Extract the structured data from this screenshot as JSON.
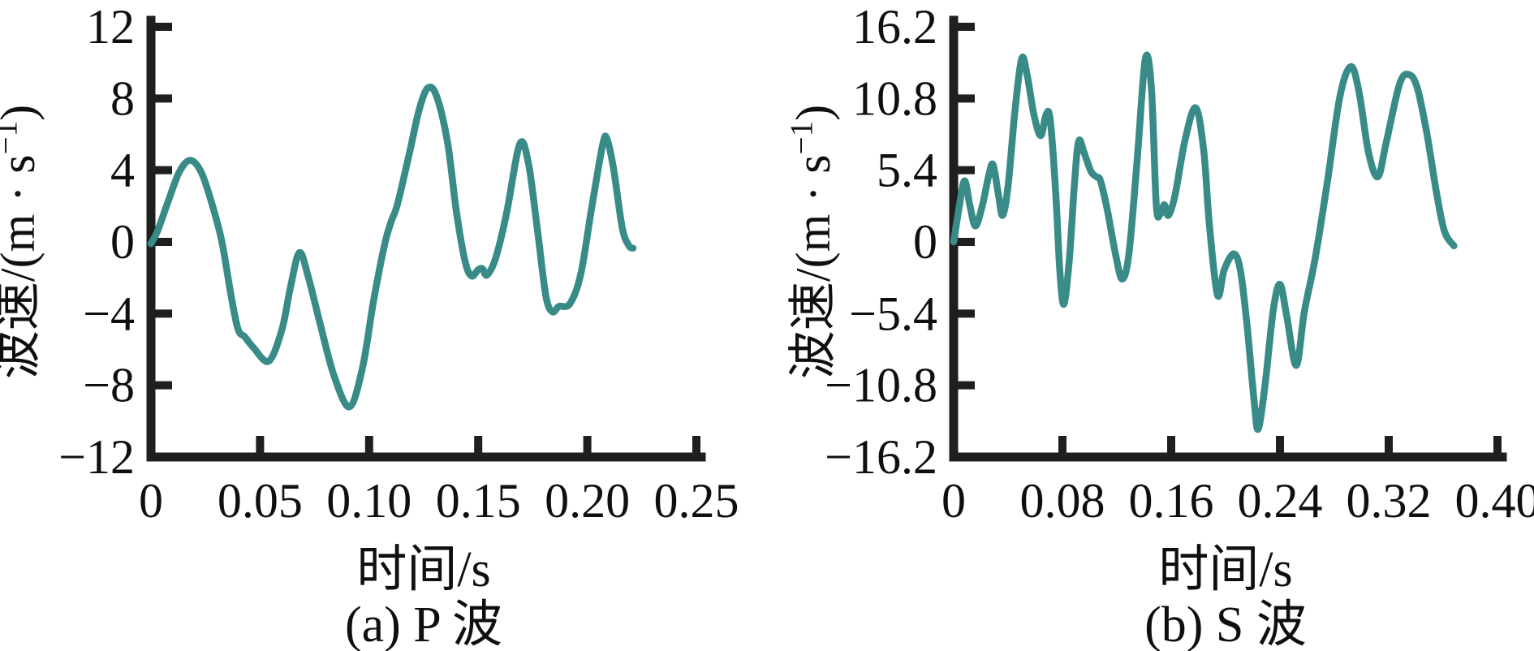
{
  "figure": {
    "background": "#ffffff",
    "line_color": "#388b87",
    "axis_color": "#1f1f1f",
    "text_color": "#0f0f0f"
  },
  "chart_data": [
    {
      "type": "line",
      "id": "p-wave",
      "caption": "(a) P 波",
      "xlabel": "时间/s",
      "ylabel": "波速/(m · s⁻¹)",
      "ylabel_parts": {
        "prefix": "波速/(m · s",
        "superscript": "−1",
        "suffix": ")"
      },
      "xlim": [
        0,
        0.25
      ],
      "ylim": [
        -12,
        12
      ],
      "xticks": [
        "0",
        "0.05",
        "0.10",
        "0.15",
        "0.20",
        "0.25"
      ],
      "xtick_values": [
        0,
        0.05,
        0.1,
        0.15,
        0.2,
        0.25
      ],
      "yticks": [
        "−12",
        "−8",
        "−4",
        "0",
        "4",
        "8",
        "12"
      ],
      "ytick_values": [
        -12,
        -8,
        -4,
        0,
        4,
        8,
        12
      ],
      "grid": false,
      "legend": null,
      "points": [
        [
          0,
          -0.1
        ],
        [
          0.003,
          0.6
        ],
        [
          0.008,
          2.3
        ],
        [
          0.013,
          3.9
        ],
        [
          0.018,
          4.55
        ],
        [
          0.023,
          3.9
        ],
        [
          0.028,
          2.1
        ],
        [
          0.0325,
          0
        ],
        [
          0.037,
          -3.2
        ],
        [
          0.04,
          -4.9
        ],
        [
          0.043,
          -5.3
        ],
        [
          0.047,
          -5.9
        ],
        [
          0.054,
          -6.65
        ],
        [
          0.06,
          -4.9
        ],
        [
          0.064,
          -2.5
        ],
        [
          0.068,
          -0.6
        ],
        [
          0.072,
          -1.9
        ],
        [
          0.078,
          -4.8
        ],
        [
          0.084,
          -7.5
        ],
        [
          0.091,
          -9.2
        ],
        [
          0.097,
          -7.0
        ],
        [
          0.102,
          -3.3
        ],
        [
          0.107,
          -0.2
        ],
        [
          0.11,
          1.1
        ],
        [
          0.113,
          2.1
        ],
        [
          0.118,
          4.7
        ],
        [
          0.123,
          7.4
        ],
        [
          0.127,
          8.6
        ],
        [
          0.131,
          8.1
        ],
        [
          0.136,
          5.5
        ],
        [
          0.14,
          1.7
        ],
        [
          0.144,
          -1.1
        ],
        [
          0.147,
          -1.9
        ],
        [
          0.15,
          -1.55
        ],
        [
          0.152,
          -1.5
        ],
        [
          0.154,
          -1.85
        ],
        [
          0.158,
          -0.9
        ],
        [
          0.163,
          1.6
        ],
        [
          0.169,
          5.45
        ],
        [
          0.173,
          4.4
        ],
        [
          0.177,
          0.8
        ],
        [
          0.181,
          -3.0
        ],
        [
          0.184,
          -3.9
        ],
        [
          0.187,
          -3.6
        ],
        [
          0.192,
          -3.45
        ],
        [
          0.197,
          -1.8
        ],
        [
          0.202,
          1.9
        ],
        [
          0.207,
          5.4
        ],
        [
          0.209,
          5.75
        ],
        [
          0.212,
          4.1
        ],
        [
          0.216,
          0.8
        ],
        [
          0.219,
          -0.2
        ],
        [
          0.221,
          -0.35
        ]
      ]
    },
    {
      "type": "line",
      "id": "s-wave",
      "caption": "(b) S 波",
      "xlabel": "时间/s",
      "ylabel": "波速/(m · s⁻¹)",
      "ylabel_parts": {
        "prefix": "波速/(m · s",
        "superscript": "−1",
        "suffix": ")"
      },
      "xlim": [
        0,
        0.4
      ],
      "ylim": [
        -16.2,
        16.2
      ],
      "xticks": [
        "0",
        "0.08",
        "0.16",
        "0.24",
        "0.32",
        "0.40"
      ],
      "xtick_values": [
        0,
        0.08,
        0.16,
        0.24,
        0.32,
        0.4
      ],
      "yticks": [
        "−16.2",
        "−10.8",
        "−5.4",
        "0",
        "5.4",
        "10.8",
        "16.2"
      ],
      "ytick_values": [
        -16.2,
        -10.8,
        -5.4,
        0,
        5.4,
        10.8,
        16.2
      ],
      "grid": false,
      "legend": null,
      "points": [
        [
          0,
          0
        ],
        [
          0.004,
          2.6
        ],
        [
          0.008,
          4.6
        ],
        [
          0.012,
          2.7
        ],
        [
          0.016,
          1.2
        ],
        [
          0.021,
          2.7
        ],
        [
          0.026,
          5.1
        ],
        [
          0.029,
          5.8
        ],
        [
          0.033,
          3.5
        ],
        [
          0.036,
          2.0
        ],
        [
          0.04,
          4.2
        ],
        [
          0.045,
          9.8
        ],
        [
          0.05,
          13.8
        ],
        [
          0.054,
          12.6
        ],
        [
          0.059,
          9.6
        ],
        [
          0.064,
          8.0
        ],
        [
          0.068,
          9.6
        ],
        [
          0.071,
          9.2
        ],
        [
          0.075,
          3.8
        ],
        [
          0.078,
          -2.0
        ],
        [
          0.081,
          -4.7
        ],
        [
          0.085,
          -1.4
        ],
        [
          0.089,
          4.6
        ],
        [
          0.092,
          7.6
        ],
        [
          0.096,
          6.7
        ],
        [
          0.101,
          5.3
        ],
        [
          0.105,
          4.9
        ],
        [
          0.108,
          4.6
        ],
        [
          0.113,
          2.4
        ],
        [
          0.119,
          -0.9
        ],
        [
          0.124,
          -2.8
        ],
        [
          0.129,
          -0.8
        ],
        [
          0.135,
          6.2
        ],
        [
          0.141,
          13.8
        ],
        [
          0.1455,
          11.5
        ],
        [
          0.149,
          2.8
        ],
        [
          0.152,
          2.1
        ],
        [
          0.155,
          2.8
        ],
        [
          0.158,
          2.0
        ],
        [
          0.163,
          3.6
        ],
        [
          0.17,
          7.6
        ],
        [
          0.178,
          10.1
        ],
        [
          0.184,
          6.8
        ],
        [
          0.188,
          1.4
        ],
        [
          0.194,
          -4.0
        ],
        [
          0.199,
          -2.1
        ],
        [
          0.206,
          -0.9
        ],
        [
          0.211,
          -2.2
        ],
        [
          0.216,
          -6.5
        ],
        [
          0.221,
          -12.0
        ],
        [
          0.224,
          -14.1
        ],
        [
          0.229,
          -10.8
        ],
        [
          0.235,
          -5.2
        ],
        [
          0.24,
          -3.2
        ],
        [
          0.245,
          -5.6
        ],
        [
          0.252,
          -9.3
        ],
        [
          0.258,
          -5.2
        ],
        [
          0.266,
          -1.2
        ],
        [
          0.275,
          4.6
        ],
        [
          0.284,
          10.9
        ],
        [
          0.292,
          13.2
        ],
        [
          0.298,
          11.4
        ],
        [
          0.305,
          6.8
        ],
        [
          0.312,
          4.9
        ],
        [
          0.318,
          7.4
        ],
        [
          0.328,
          11.9
        ],
        [
          0.335,
          12.6
        ],
        [
          0.341,
          11.6
        ],
        [
          0.348,
          8.2
        ],
        [
          0.355,
          3.8
        ],
        [
          0.361,
          0.8
        ],
        [
          0.368,
          -0.3
        ]
      ]
    }
  ]
}
